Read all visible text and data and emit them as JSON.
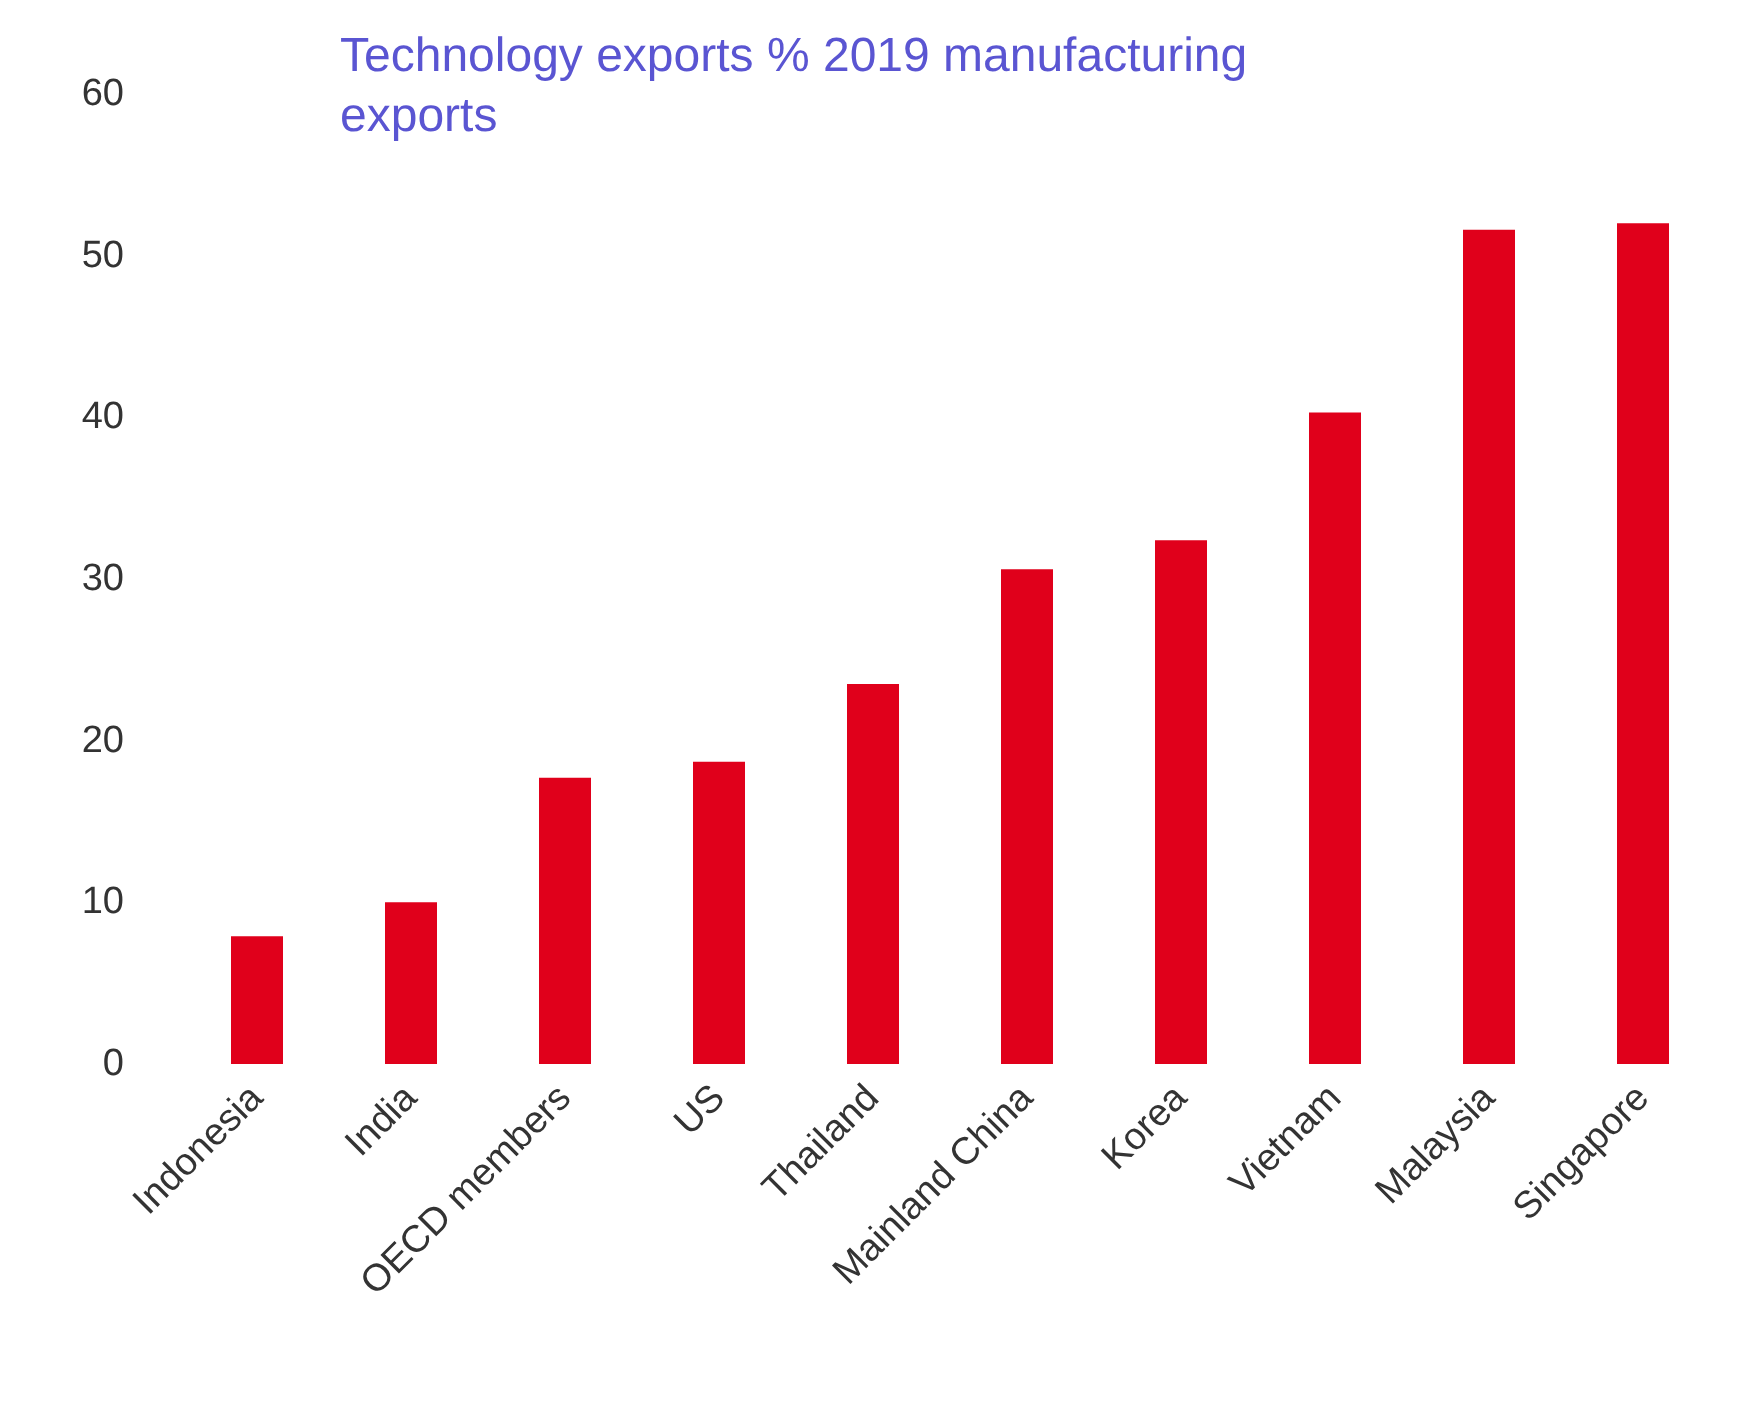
{
  "chart_data": {
    "type": "bar",
    "title": "Technology exports % 2019 manufacturing\nexports",
    "categories": [
      "Indonesia",
      "India",
      "OECD members",
      "US",
      "Thailand",
      "Mainland China",
      "Korea",
      "Vietnam",
      "Malaysia",
      "Singapore"
    ],
    "values": [
      7.9,
      10,
      17.7,
      18.7,
      23.5,
      30.6,
      32.4,
      40.3,
      51.6,
      52
    ],
    "color": "#e0001b",
    "ylim": [
      0,
      60
    ],
    "yticks": [
      0,
      10,
      20,
      30,
      40,
      50,
      60
    ],
    "grid": false
  }
}
